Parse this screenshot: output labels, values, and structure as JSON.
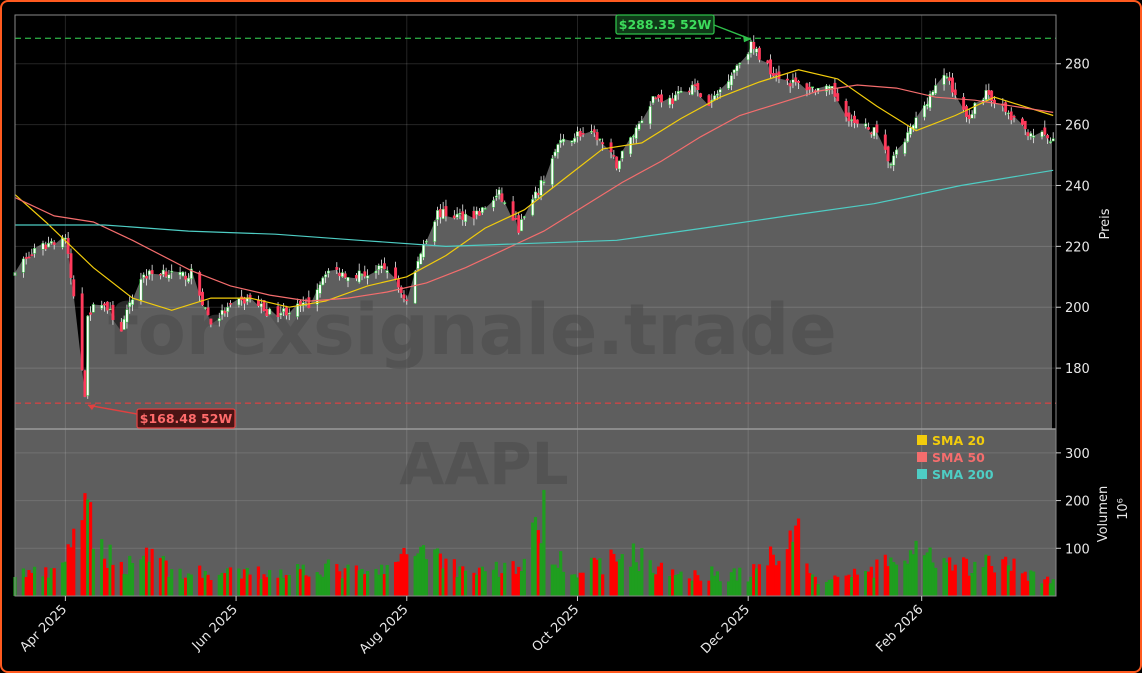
{
  "chart_data": [
    {
      "type": "candlestick",
      "panel": "price",
      "ylabel": "Preis",
      "ylim": [
        160,
        296
      ],
      "yticks": [
        180,
        200,
        220,
        240,
        260,
        280
      ],
      "x_range": [
        "2025-03-14",
        "2026-03-21"
      ],
      "xticks": [
        {
          "date": "2025-04-01",
          "label": "Apr 2025"
        },
        {
          "date": "2025-06-01",
          "label": "Jun 2025"
        },
        {
          "date": "2025-08-01",
          "label": "Aug 2025"
        },
        {
          "date": "2025-10-01",
          "label": "Oct 2025"
        },
        {
          "date": "2025-12-01",
          "label": "Dec 2025"
        },
        {
          "date": "2026-02-01",
          "label": "Feb 2026"
        }
      ],
      "grid": true,
      "watermark": "forexsignale.trade",
      "ticker_watermark": "AAPL",
      "high_52w": {
        "value": 288.35,
        "label": "$288.35 52W",
        "date": "2025-12-02"
      },
      "low_52w": {
        "value": 168.48,
        "label": "$168.48 52W",
        "date": "2025-04-08"
      },
      "last_close": 254.2,
      "close_anchors": [
        [
          "2025-03-14",
          213
        ],
        [
          "2025-03-21",
          218
        ],
        [
          "2025-03-28",
          222
        ],
        [
          "2025-04-01",
          223
        ],
        [
          "2025-04-04",
          203
        ],
        [
          "2025-04-08",
          172
        ],
        [
          "2025-04-09",
          198
        ],
        [
          "2025-04-14",
          202
        ],
        [
          "2025-04-21",
          193
        ],
        [
          "2025-04-28",
          210
        ],
        [
          "2025-05-06",
          212
        ],
        [
          "2025-05-12",
          210
        ],
        [
          "2025-05-16",
          211
        ],
        [
          "2025-05-23",
          195
        ],
        [
          "2025-05-30",
          200
        ],
        [
          "2025-06-06",
          203
        ],
        [
          "2025-06-13",
          198
        ],
        [
          "2025-06-20",
          199
        ],
        [
          "2025-06-27",
          201
        ],
        [
          "2025-07-03",
          212
        ],
        [
          "2025-07-11",
          211
        ],
        [
          "2025-07-18",
          211
        ],
        [
          "2025-07-25",
          213
        ],
        [
          "2025-08-01",
          202
        ],
        [
          "2025-08-07",
          221
        ],
        [
          "2025-08-12",
          231
        ],
        [
          "2025-08-19",
          230
        ],
        [
          "2025-08-27",
          231
        ],
        [
          "2025-09-03",
          237
        ],
        [
          "2025-09-10",
          226
        ],
        [
          "2025-09-17",
          238
        ],
        [
          "2025-09-24",
          253
        ],
        [
          "2025-10-01",
          257
        ],
        [
          "2025-10-08",
          256
        ],
        [
          "2025-10-15",
          247
        ],
        [
          "2025-10-21",
          257
        ],
        [
          "2025-10-28",
          269
        ],
        [
          "2025-11-04",
          268
        ],
        [
          "2025-11-11",
          273
        ],
        [
          "2025-11-17",
          266
        ],
        [
          "2025-11-25",
          277
        ],
        [
          "2025-12-02",
          286
        ],
        [
          "2025-12-09",
          278
        ],
        [
          "2025-12-16",
          274
        ],
        [
          "2025-12-23",
          272
        ],
        [
          "2025-12-31",
          271
        ],
        [
          "2026-01-08",
          260
        ],
        [
          "2026-01-15",
          258
        ],
        [
          "2026-01-21",
          247
        ],
        [
          "2026-01-28",
          258
        ],
        [
          "2026-02-04",
          270
        ],
        [
          "2026-02-10",
          276
        ],
        [
          "2026-02-17",
          262
        ],
        [
          "2026-02-24",
          271
        ],
        [
          "2026-03-03",
          264
        ],
        [
          "2026-03-10",
          258
        ],
        [
          "2026-03-17",
          256
        ],
        [
          "2026-03-20",
          254
        ]
      ],
      "series": [
        {
          "name": "SMA 20",
          "color": "#f2cc0c",
          "values": [
            [
              "2025-03-14",
              237
            ],
            [
              "2025-03-25",
              228
            ],
            [
              "2025-04-11",
              213
            ],
            [
              "2025-04-25",
              203
            ],
            [
              "2025-05-09",
              199
            ],
            [
              "2025-05-23",
              203
            ],
            [
              "2025-06-06",
              203
            ],
            [
              "2025-06-20",
              200
            ],
            [
              "2025-07-03",
              202
            ],
            [
              "2025-07-18",
              207
            ],
            [
              "2025-08-01",
              210
            ],
            [
              "2025-08-15",
              217
            ],
            [
              "2025-08-29",
              226
            ],
            [
              "2025-09-12",
              232
            ],
            [
              "2025-09-26",
              242
            ],
            [
              "2025-10-10",
              252
            ],
            [
              "2025-10-24",
              254
            ],
            [
              "2025-11-07",
              262
            ],
            [
              "2025-11-21",
              269
            ],
            [
              "2025-12-05",
              274
            ],
            [
              "2025-12-19",
              278
            ],
            [
              "2026-01-02",
              275
            ],
            [
              "2026-01-16",
              266
            ],
            [
              "2026-01-30",
              258
            ],
            [
              "2026-02-13",
              263
            ],
            [
              "2026-02-27",
              269
            ],
            [
              "2026-03-20",
              263
            ]
          ]
        },
        {
          "name": "SMA 50",
          "color": "#f46d6d",
          "values": [
            [
              "2025-03-14",
              236
            ],
            [
              "2025-03-28",
              230
            ],
            [
              "2025-04-11",
              228
            ],
            [
              "2025-04-25",
              222
            ],
            [
              "2025-05-16",
              212
            ],
            [
              "2025-05-30",
              207
            ],
            [
              "2025-06-13",
              204
            ],
            [
              "2025-06-27",
              202
            ],
            [
              "2025-07-11",
              203
            ],
            [
              "2025-07-25",
              205
            ],
            [
              "2025-08-08",
              208
            ],
            [
              "2025-08-22",
              213
            ],
            [
              "2025-09-05",
              219
            ],
            [
              "2025-09-19",
              225
            ],
            [
              "2025-10-03",
              233
            ],
            [
              "2025-10-17",
              241
            ],
            [
              "2025-10-31",
              248
            ],
            [
              "2025-11-14",
              256
            ],
            [
              "2025-11-28",
              263
            ],
            [
              "2025-12-12",
              267
            ],
            [
              "2025-12-26",
              271
            ],
            [
              "2026-01-09",
              273
            ],
            [
              "2026-01-23",
              272
            ],
            [
              "2026-02-06",
              269
            ],
            [
              "2026-02-20",
              268
            ],
            [
              "2026-03-06",
              266
            ],
            [
              "2026-03-20",
              264
            ]
          ]
        },
        {
          "name": "SMA 200",
          "color": "#4ecdc4",
          "values": [
            [
              "2025-03-14",
              227
            ],
            [
              "2025-04-15",
              227
            ],
            [
              "2025-05-15",
              225
            ],
            [
              "2025-06-15",
              224
            ],
            [
              "2025-07-15",
              222
            ],
            [
              "2025-08-15",
              220
            ],
            [
              "2025-09-15",
              221
            ],
            [
              "2025-10-15",
              222
            ],
            [
              "2025-11-15",
              226
            ],
            [
              "2025-12-15",
              230
            ],
            [
              "2026-01-15",
              234
            ],
            [
              "2026-02-15",
              240
            ],
            [
              "2026-03-20",
              245
            ]
          ]
        }
      ]
    },
    {
      "type": "bar",
      "panel": "volume",
      "ylabel": "Volumen",
      "yunit": "10⁶",
      "ylim": [
        0,
        350
      ],
      "yticks": [
        100,
        200,
        300
      ],
      "up_color": "#1f9e1f",
      "down_color": "#ff0000",
      "volume_anchors": [
        [
          "2025-03-14",
          50
        ],
        [
          "2025-03-28",
          45
        ],
        [
          "2025-04-03",
          110
        ],
        [
          "2025-04-04",
          160
        ],
        [
          "2025-04-07",
          130
        ],
        [
          "2025-04-09",
          190
        ],
        [
          "2025-04-11",
          120
        ],
        [
          "2025-04-21",
          60
        ],
        [
          "2025-05-02",
          100
        ],
        [
          "2025-05-09",
          50
        ],
        [
          "2025-06-01",
          45
        ],
        [
          "2025-06-13",
          50
        ],
        [
          "2025-07-01",
          60
        ],
        [
          "2025-07-20",
          45
        ],
        [
          "2025-08-01",
          80
        ],
        [
          "2025-08-07",
          110
        ],
        [
          "2025-08-08",
          105
        ],
        [
          "2025-08-20",
          55
        ],
        [
          "2025-09-10",
          60
        ],
        [
          "2025-09-19",
          165
        ],
        [
          "2025-09-22",
          100
        ],
        [
          "2025-10-01",
          50
        ],
        [
          "2025-10-20",
          90
        ],
        [
          "2025-11-01",
          50
        ],
        [
          "2025-12-02",
          45
        ],
        [
          "2025-12-19",
          140
        ],
        [
          "2025-12-25",
          30
        ],
        [
          "2026-01-15",
          55
        ],
        [
          "2026-01-30",
          90
        ],
        [
          "2026-02-10",
          60
        ],
        [
          "2026-03-01",
          70
        ],
        [
          "2026-03-20",
          30
        ]
      ]
    }
  ],
  "legend": [
    {
      "label": "SMA 20",
      "color": "#f2cc0c"
    },
    {
      "label": "SMA 50",
      "color": "#f46d6d"
    },
    {
      "label": "SMA 200",
      "color": "#4ecdc4"
    }
  ]
}
